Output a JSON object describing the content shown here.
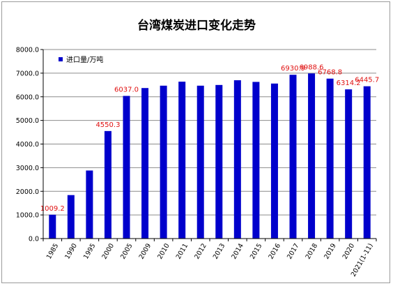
{
  "chart_data": {
    "type": "bar",
    "title": "台湾煤炭进口变化走势",
    "xlabel": "",
    "ylabel": "",
    "ylim": [
      0,
      8000
    ],
    "yticks": [
      "0.0",
      "1000.0",
      "2000.0",
      "3000.0",
      "4000.0",
      "5000.0",
      "6000.0",
      "7000.0",
      "8000.0"
    ],
    "grid": true,
    "legend_position": "top-left",
    "colors": {
      "bar": "#0000cc",
      "data_label": "#e01010"
    },
    "series": [
      {
        "name": "进口量/万吨"
      }
    ],
    "categories": [
      "1985",
      "1990",
      "1995",
      "2000",
      "2005",
      "2009",
      "2010",
      "2011",
      "2012",
      "2013",
      "2014",
      "2015",
      "2016",
      "2017",
      "2018",
      "2019",
      "2020",
      "2021(1-11)"
    ],
    "values": [
      1009.2,
      1840,
      2880,
      4550.3,
      6037.0,
      6370,
      6470,
      6640,
      6470,
      6500,
      6700,
      6630,
      6560,
      6930.9,
      6988.6,
      6768.8,
      6314.2,
      6445.7
    ],
    "data_labels": [
      "1009.2",
      "",
      "",
      "4550.3",
      "6037.0",
      "",
      "",
      "",
      "",
      "",
      "",
      "",
      "",
      "6930.9",
      "6988.6",
      "6768.8",
      "6314.2",
      "6445.7"
    ]
  }
}
